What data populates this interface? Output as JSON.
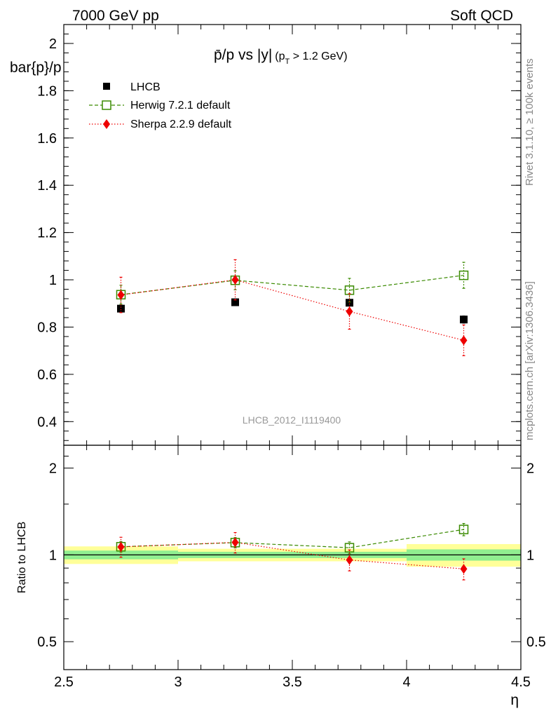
{
  "header": {
    "left": "7000 GeV pp",
    "right": "Soft QCD"
  },
  "side_labels": {
    "rivet": "Rivet 3.1.10, ≥ 100k events",
    "mcplots": "mcplots.cern.ch [arXiv:1306.3436]"
  },
  "chart_data": [
    {
      "type": "scatter",
      "title_main": "p̄/p vs |y|",
      "title_sub": "(p",
      "title_sub_index": "T",
      "title_sub_tail": " > 1.2 GeV)",
      "ylabel": "bar{p}/p",
      "watermark": "LHCB_2012_I1119400",
      "xlim": [
        2.5,
        4.5
      ],
      "ylim": [
        0.3,
        2.08
      ],
      "y_ticks": [
        0.4,
        0.6,
        0.8,
        1,
        1.2,
        1.4,
        1.6,
        1.8,
        2
      ],
      "y_tick_labels": [
        "0.4",
        "0.6",
        "0.8",
        "1",
        "1.2",
        "1.4",
        "1.6",
        "1.8",
        "2"
      ],
      "legend_position": "top-left",
      "series": [
        {
          "name": "LHCB",
          "color": "#000000",
          "marker": "filled-square",
          "x": [
            2.75,
            3.25,
            3.75,
            4.25
          ],
          "y": [
            0.878,
            0.905,
            0.903,
            0.832
          ],
          "yerr": [
            0.012,
            0.01,
            0.01,
            0.015
          ]
        },
        {
          "name": "Herwig 7.2.1 default",
          "color": "#3a8a00",
          "marker": "open-square",
          "line": "dashed",
          "x": [
            2.75,
            3.25,
            3.75,
            4.25
          ],
          "y": [
            0.937,
            0.998,
            0.956,
            1.019
          ],
          "yerr": [
            0.04,
            0.04,
            0.05,
            0.055
          ]
        },
        {
          "name": "Sherpa 2.2.9 default",
          "color": "#ee0000",
          "marker": "filled-diamond",
          "line": "dotted",
          "x": [
            2.75,
            3.25,
            3.75,
            4.25
          ],
          "y": [
            0.936,
            1.0,
            0.866,
            0.744
          ],
          "yerr": [
            0.075,
            0.085,
            0.075,
            0.065
          ]
        }
      ]
    },
    {
      "type": "scatter",
      "ylabel": "Ratio to LHCB",
      "xlabel": "η",
      "xlim": [
        2.5,
        4.5
      ],
      "ylim": [
        0.4,
        2.4
      ],
      "y_scale": "log",
      "x_ticks": [
        2.5,
        3,
        3.5,
        4,
        4.5
      ],
      "x_tick_labels": [
        "2.5",
        "3",
        "3.5",
        "4",
        "4.5"
      ],
      "y_ticks": [
        0.5,
        1,
        2
      ],
      "y_tick_labels": [
        "0.5",
        "1",
        "2"
      ],
      "bands": {
        "bins": [
          [
            2.5,
            3.0
          ],
          [
            3.0,
            3.5
          ],
          [
            3.5,
            4.0
          ],
          [
            4.0,
            4.5
          ]
        ],
        "inner": [
          [
            0.965,
            1.035
          ],
          [
            0.975,
            1.025
          ],
          [
            0.975,
            1.025
          ],
          [
            0.955,
            1.045
          ]
        ],
        "outer": [
          [
            0.93,
            1.07
          ],
          [
            0.95,
            1.05
          ],
          [
            0.95,
            1.05
          ],
          [
            0.91,
            1.09
          ]
        ],
        "inner_color": "#90ee90",
        "outer_color": "#ffff99"
      },
      "series": [
        {
          "name": "Herwig 7.2.1 default",
          "x": [
            2.75,
            3.25,
            3.75,
            4.25
          ],
          "y": [
            1.067,
            1.103,
            1.059,
            1.225
          ],
          "yerr": [
            0.045,
            0.045,
            0.05,
            0.06
          ]
        },
        {
          "name": "Sherpa 2.2.9 default",
          "x": [
            2.75,
            3.25,
            3.75,
            4.25
          ],
          "y": [
            1.066,
            1.105,
            0.96,
            0.894
          ],
          "yerr": [
            0.085,
            0.09,
            0.08,
            0.075
          ]
        }
      ]
    }
  ]
}
